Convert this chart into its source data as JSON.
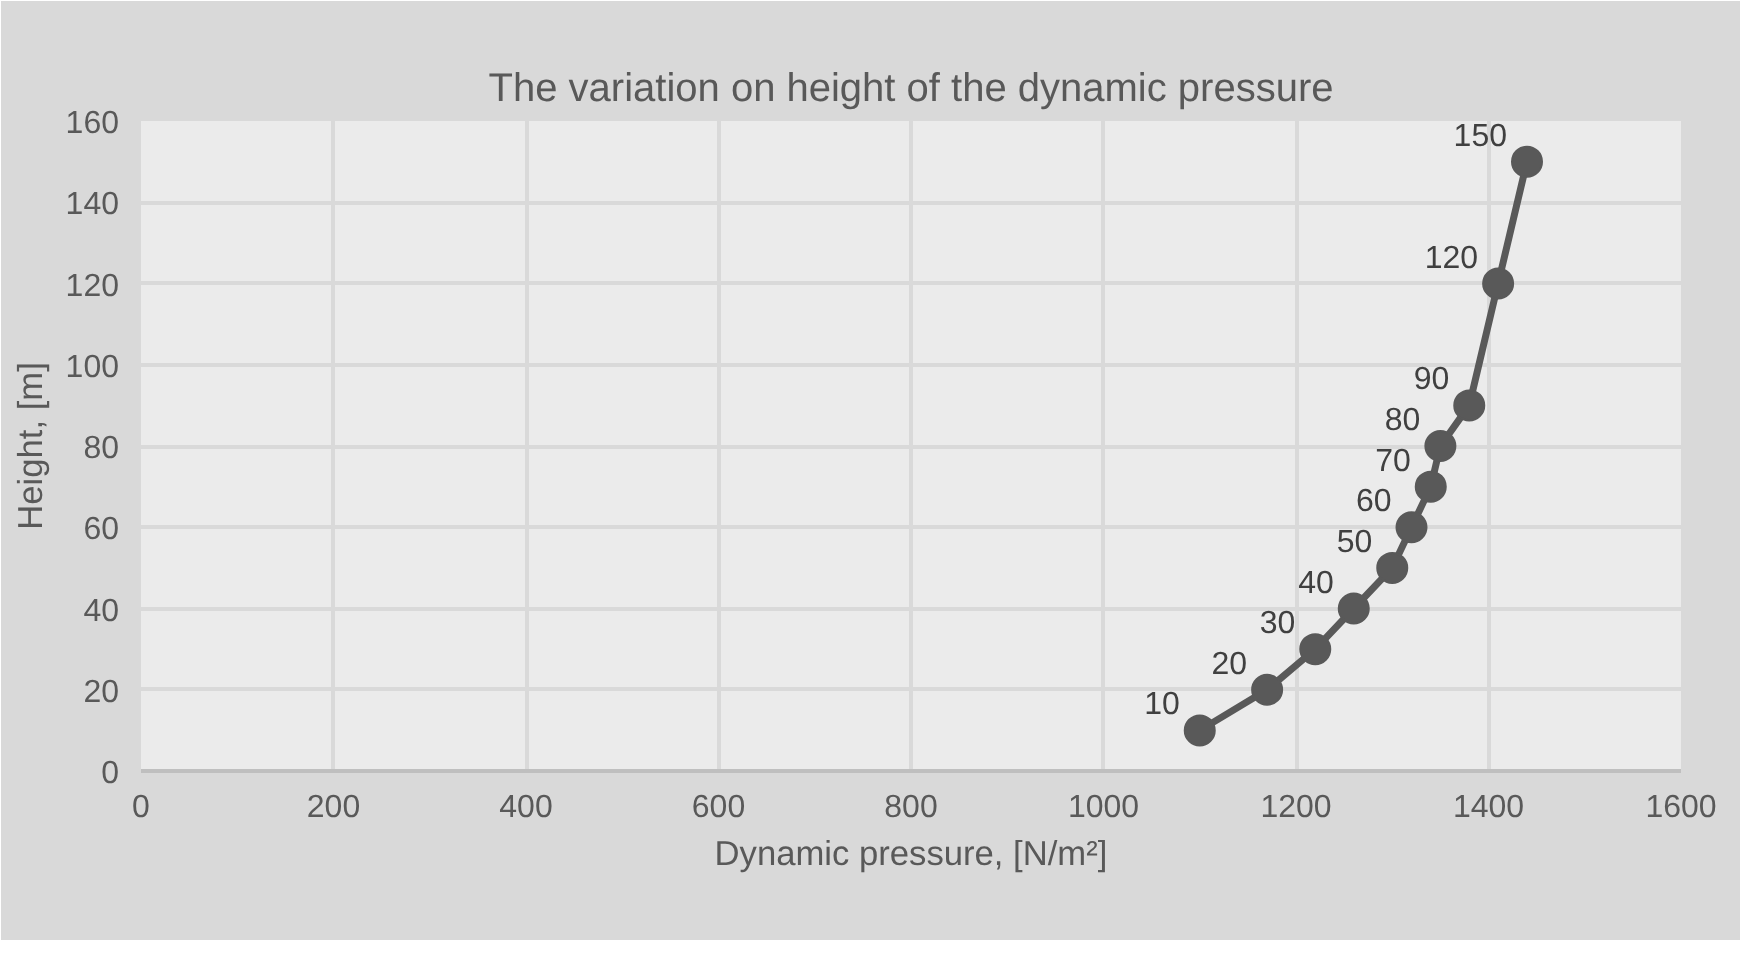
{
  "chart_data": {
    "type": "line",
    "title": "The variation on height of the dynamic pressure",
    "xlabel": "Dynamic pressure, [N/m²]",
    "ylabel": "Height, [m]",
    "x": [
      1100,
      1170,
      1220,
      1260,
      1300,
      1320,
      1340,
      1350,
      1380,
      1410,
      1440
    ],
    "series": [
      {
        "color": "#595959",
        "values": [
          10,
          20,
          30,
          40,
          50,
          60,
          70,
          80,
          90,
          120,
          150
        ]
      }
    ],
    "xlim": [
      0,
      1600
    ],
    "xticks": [
      0,
      200,
      400,
      600,
      800,
      1000,
      1200,
      1400,
      1600
    ],
    "ylim": [
      0,
      160
    ],
    "yticks": [
      0,
      20,
      40,
      60,
      80,
      100,
      120,
      140,
      160
    ],
    "grid": true,
    "marker": "circle",
    "line_style": "solid",
    "data_labels": true
  }
}
